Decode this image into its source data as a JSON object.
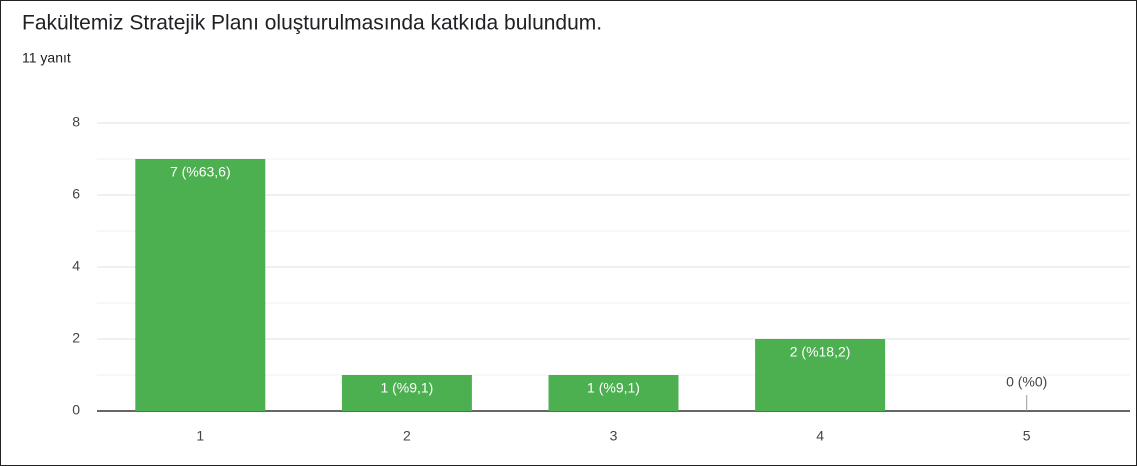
{
  "chart_data": {
    "type": "bar",
    "title": "Fakültemiz Stratejik Planı oluşturulmasında katkıda bulundum.",
    "subtitle": "11 yanıt",
    "categories": [
      "1",
      "2",
      "3",
      "4",
      "5"
    ],
    "values": [
      7,
      1,
      1,
      2,
      0
    ],
    "value_labels": [
      "7 (%63,6)",
      "1 (%9,1)",
      "1 (%9,1)",
      "2 (%18,2)",
      "0 (%0)"
    ],
    "color": "#4caf50",
    "ylim": [
      0,
      8
    ],
    "yticks": [
      0,
      2,
      4,
      6,
      8
    ],
    "minor_yticks": [
      1,
      3,
      5,
      7
    ],
    "grid": true
  }
}
